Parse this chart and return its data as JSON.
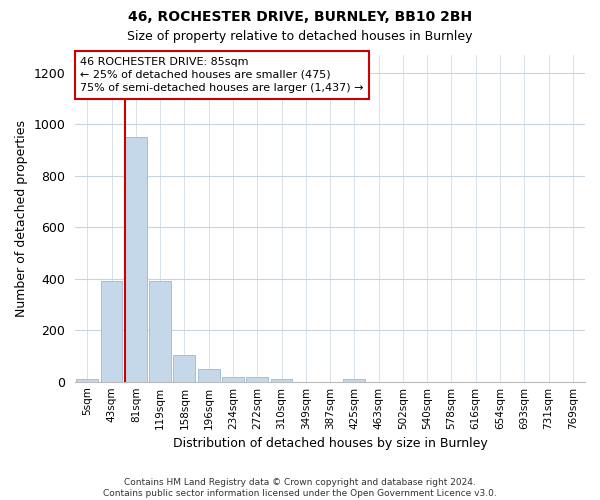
{
  "title1": "46, ROCHESTER DRIVE, BURNLEY, BB10 2BH",
  "title2": "Size of property relative to detached houses in Burnley",
  "xlabel": "Distribution of detached houses by size in Burnley",
  "ylabel": "Number of detached properties",
  "categories": [
    "5sqm",
    "43sqm",
    "81sqm",
    "119sqm",
    "158sqm",
    "196sqm",
    "234sqm",
    "272sqm",
    "310sqm",
    "349sqm",
    "387sqm",
    "425sqm",
    "463sqm",
    "502sqm",
    "540sqm",
    "578sqm",
    "616sqm",
    "654sqm",
    "693sqm",
    "731sqm",
    "769sqm"
  ],
  "values": [
    10,
    390,
    950,
    390,
    105,
    50,
    20,
    20,
    10,
    0,
    0,
    10,
    0,
    0,
    0,
    0,
    0,
    0,
    0,
    0,
    0
  ],
  "bar_color": "#c5d8ea",
  "bar_edge_color": "#9ab8d0",
  "vline_color": "#cc0000",
  "annotation_text": "46 ROCHESTER DRIVE: 85sqm\n← 25% of detached houses are smaller (475)\n75% of semi-detached houses are larger (1,437) →",
  "annotation_box_color": "#ffffff",
  "annotation_box_edge": "#cc0000",
  "ylim": [
    0,
    1270
  ],
  "yticks": [
    0,
    200,
    400,
    600,
    800,
    1000,
    1200
  ],
  "footnote": "Contains HM Land Registry data © Crown copyright and database right 2024.\nContains public sector information licensed under the Open Government Licence v3.0.",
  "bg_color": "#ffffff",
  "plot_bg_color": "#ffffff",
  "grid_color": "#c8d4de"
}
